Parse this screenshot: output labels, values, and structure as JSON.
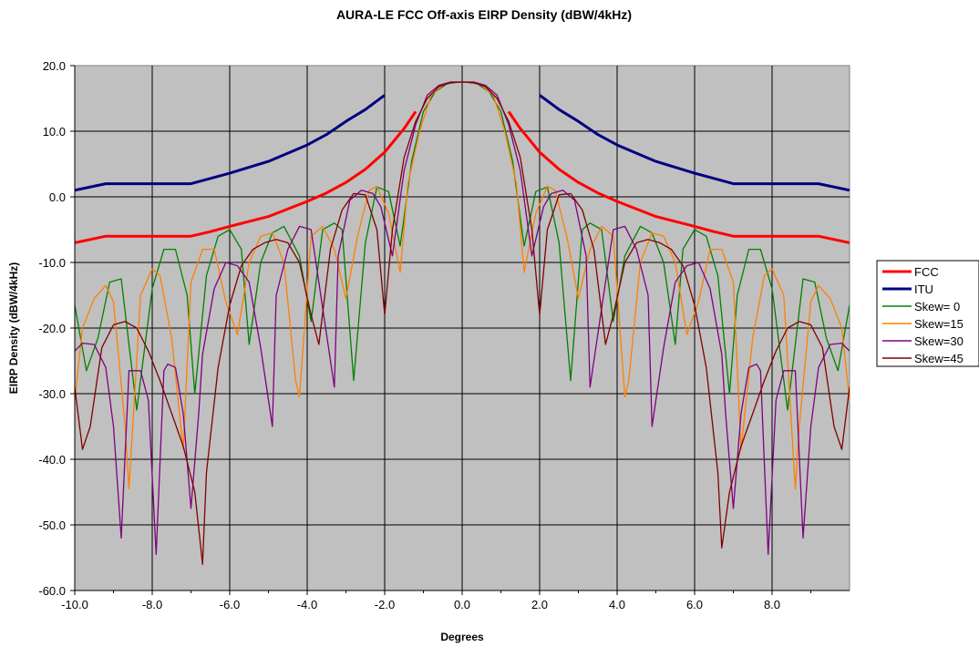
{
  "chart_data": {
    "type": "line",
    "title": "AURA-LE FCC Off-axis EIRP Density (dBW/4kHz)",
    "xlabel": "Degrees",
    "ylabel": "EIRP Density (dBW/4kHz)",
    "xlim": [
      -10,
      10
    ],
    "ylim": [
      -60,
      20
    ],
    "xticks": [
      "-10.0",
      "-8.0",
      "-6.0",
      "-4.0",
      "-2.0",
      "0.0",
      "2.0",
      "4.0",
      "6.0",
      "8.0"
    ],
    "yticks": [
      "20.0",
      "10.0",
      "0.0",
      "-10.0",
      "-20.0",
      "-30.0",
      "-40.0",
      "-50.0",
      "-60.0"
    ],
    "grid": true,
    "plot_background": "#c0c0c0",
    "legend_position": "right",
    "series": [
      {
        "name": "FCC",
        "color": "#ff0000",
        "segments": [
          [
            [
              -10,
              -7
            ],
            [
              -9.2,
              -6
            ],
            [
              -8,
              -6
            ],
            [
              -7,
              -6
            ],
            [
              -6.5,
              -5.3
            ],
            [
              -6,
              -4.5
            ],
            [
              -5,
              -3
            ],
            [
              -4,
              -0.7
            ],
            [
              -3.5,
              0.6
            ],
            [
              -3,
              2.2
            ],
            [
              -2.5,
              4.2
            ],
            [
              -2,
              6.8
            ],
            [
              -1.5,
              10.4
            ],
            [
              -1.2,
              13
            ]
          ],
          [
            [
              1.2,
              13
            ],
            [
              1.5,
              10.4
            ],
            [
              2,
              6.8
            ],
            [
              2.5,
              4.2
            ],
            [
              3,
              2.2
            ],
            [
              3.5,
              0.6
            ],
            [
              4,
              -0.7
            ],
            [
              5,
              -3
            ],
            [
              6,
              -4.5
            ],
            [
              6.5,
              -5.3
            ],
            [
              7,
              -6
            ],
            [
              8,
              -6
            ],
            [
              9.2,
              -6
            ],
            [
              10,
              -7
            ]
          ]
        ]
      },
      {
        "name": "ITU",
        "color": "#000080",
        "segments": [
          [
            [
              -10,
              1
            ],
            [
              -9.2,
              2
            ],
            [
              -8,
              2
            ],
            [
              -7,
              2
            ],
            [
              -6.5,
              2.8
            ],
            [
              -6,
              3.6
            ],
            [
              -5,
              5.4
            ],
            [
              -4,
              7.9
            ],
            [
              -3.5,
              9.5
            ],
            [
              -3,
              11.5
            ],
            [
              -2.5,
              13.3
            ],
            [
              -2,
              15.5
            ]
          ],
          [
            [
              2,
              15.5
            ],
            [
              2.5,
              13.3
            ],
            [
              3,
              11.5
            ],
            [
              3.5,
              9.5
            ],
            [
              4,
              7.9
            ],
            [
              5,
              5.4
            ],
            [
              6,
              3.6
            ],
            [
              6.5,
              2.8
            ],
            [
              7,
              2
            ],
            [
              8,
              2
            ],
            [
              9.2,
              2
            ],
            [
              10,
              1
            ]
          ]
        ]
      },
      {
        "name": "Skew= 0",
        "color": "#008000",
        "lobes_x": [
          0.72,
          2.25,
          3.78,
          5.32,
          6.87,
          8.42
        ],
        "lobes_y": [
          -20,
          -8,
          -22,
          -28,
          -30,
          -32
        ],
        "peaks_y": [
          1.5,
          -4,
          -4.5,
          -4.5,
          -7.5,
          -12
        ],
        "x": [
          -10,
          -9.7,
          -9.4,
          -9.1,
          -8.8,
          -8.4,
          -8,
          -7.7,
          -7.4,
          -7.1,
          -6.9,
          -6.6,
          -6.3,
          -6,
          -5.7,
          -5.5,
          -5.2,
          -4.9,
          -4.6,
          -4.2,
          -3.9,
          -3.6,
          -3.3,
          -3.1,
          -2.8,
          -2.5,
          -2.2,
          -1.9,
          -1.6,
          -1.3,
          -1,
          -0.7,
          -0.4,
          -0.1,
          0,
          0.1,
          0.4,
          0.7,
          1,
          1.3,
          1.6,
          1.9,
          2.2,
          2.5,
          2.8,
          3.1,
          3.3,
          3.6,
          3.9,
          4.2,
          4.6,
          4.9,
          5.2,
          5.5,
          5.7,
          6,
          6.3,
          6.6,
          6.9,
          7.1,
          7.4,
          7.7,
          8,
          8.4,
          8.8,
          9.1,
          9.4,
          9.7,
          10
        ],
        "y": [
          -16.5,
          -26.5,
          -21.5,
          -13,
          -12.5,
          -32.5,
          -14,
          -8,
          -8,
          -15,
          -30,
          -12,
          -6,
          -5,
          -8,
          -22.5,
          -10,
          -5.5,
          -4.5,
          -9,
          -19,
          -5,
          -4,
          -5,
          -28,
          -7,
          1.5,
          0.8,
          -7.5,
          5.5,
          13,
          16,
          17.2,
          17.5,
          17.5,
          17.5,
          17.2,
          16,
          13,
          5.5,
          -7.5,
          0.8,
          1.5,
          -7,
          -28,
          -5,
          -4,
          -5,
          -19,
          -9,
          -4.5,
          -5.5,
          -10,
          -22.5,
          -8,
          -5,
          -6,
          -12,
          -30,
          -15,
          -8,
          -8,
          -14,
          -32.5,
          -12.5,
          -13,
          -21.5,
          -26.5,
          -16.5
        ]
      },
      {
        "name": "Skew=15",
        "color": "#ff8000",
        "x": [
          -10,
          -9.8,
          -9.5,
          -9.2,
          -9,
          -8.7,
          -8.6,
          -8.3,
          -8,
          -7.8,
          -7.5,
          -7.2,
          -7,
          -6.7,
          -6.4,
          -6.1,
          -5.8,
          -5.5,
          -5.2,
          -4.9,
          -4.6,
          -4.3,
          -4.2,
          -3.9,
          -3.6,
          -3.3,
          -3,
          -2.7,
          -2.4,
          -2.2,
          -1.9,
          -1.6,
          -1.4,
          -1.1,
          -0.8,
          -0.5,
          -0.2,
          0,
          0.2,
          0.5,
          0.8,
          1.1,
          1.4,
          1.6,
          1.9,
          2.2,
          2.4,
          2.7,
          3,
          3.3,
          3.6,
          3.9,
          4.2,
          4.3,
          4.6,
          4.9,
          5.2,
          5.5,
          5.8,
          6.1,
          6.4,
          6.7,
          7,
          7.2,
          7.5,
          7.8,
          8,
          8.3,
          8.6,
          8.7,
          9,
          9.2,
          9.5,
          9.8,
          10
        ],
        "y": [
          -31,
          -20,
          -15.5,
          -13.5,
          -16,
          -35,
          -44.5,
          -15,
          -11,
          -12,
          -21.5,
          -38.5,
          -13,
          -8,
          -8,
          -16,
          -21,
          -10,
          -6,
          -5.5,
          -10,
          -28,
          -30.5,
          -6,
          -4.5,
          -8,
          -15.5,
          -6,
          1,
          1.6,
          -2.5,
          -11.5,
          2,
          10,
          15.5,
          17,
          17.5,
          17.5,
          17.5,
          17,
          15.5,
          10,
          2,
          -11.5,
          -2.5,
          1.6,
          1,
          -6,
          -15.5,
          -8,
          -4.5,
          -6,
          -30.5,
          -28,
          -10,
          -5.5,
          -6,
          -10,
          -21,
          -16,
          -8,
          -8,
          -13,
          -38.5,
          -21.5,
          -12,
          -11,
          -15,
          -44.5,
          -35,
          -16,
          -13.5,
          -15.5,
          -20,
          -31
        ]
      },
      {
        "name": "Skew=30",
        "color": "#800080",
        "x": [
          -10,
          -9.8,
          -9.5,
          -9.2,
          -9,
          -8.8,
          -8.6,
          -8.3,
          -8.1,
          -7.9,
          -7.7,
          -7.6,
          -7.4,
          -7.2,
          -7,
          -6.8,
          -6.7,
          -6.4,
          -6.1,
          -5.8,
          -5.5,
          -5.2,
          -4.9,
          -4.8,
          -4.5,
          -4.2,
          -3.9,
          -3.6,
          -3.3,
          -3.2,
          -2.9,
          -2.6,
          -2.3,
          -2.1,
          -1.8,
          -1.5,
          -1.2,
          -0.9,
          -0.6,
          -0.3,
          0,
          0.3,
          0.6,
          0.9,
          1.2,
          1.5,
          1.8,
          2.1,
          2.3,
          2.6,
          2.9,
          3.2,
          3.3,
          3.6,
          3.9,
          4.2,
          4.5,
          4.8,
          4.9,
          5.2,
          5.5,
          5.8,
          6.1,
          6.4,
          6.7,
          6.8,
          7,
          7.2,
          7.4,
          7.6,
          7.7,
          7.9,
          8.1,
          8.3,
          8.6,
          8.8,
          9,
          9.2,
          9.5,
          9.8,
          10
        ],
        "y": [
          -23.5,
          -22.3,
          -22.5,
          -26,
          -35,
          -52,
          -26.5,
          -26.5,
          -31,
          -54.5,
          -26.5,
          -25.5,
          -26,
          -33,
          -47.5,
          -33,
          -24,
          -14,
          -10,
          -10.5,
          -13,
          -23,
          -35,
          -15,
          -8,
          -4.5,
          -5,
          -17,
          -29,
          -9,
          -0.5,
          1,
          0.5,
          -1.5,
          -9,
          4,
          11,
          15.5,
          17,
          17.5,
          17.5,
          17.5,
          17,
          15.5,
          11,
          4,
          -9,
          -1.5,
          0.5,
          1,
          -0.5,
          -9,
          -29,
          -17,
          -5,
          -4.5,
          -8,
          -15,
          -35,
          -23,
          -13,
          -10.5,
          -10,
          -14,
          -24,
          -33,
          -47.5,
          -33,
          -26,
          -25.5,
          -26.5,
          -54.5,
          -31,
          -26.5,
          -26.5,
          -52,
          -35,
          -26,
          -22.5,
          -22.3,
          -23.5
        ]
      },
      {
        "name": "Skew=45",
        "color": "#800000",
        "x": [
          -10,
          -9.8,
          -9.6,
          -9.3,
          -9,
          -8.7,
          -8.4,
          -8.1,
          -7.8,
          -7.5,
          -7.2,
          -6.9,
          -6.7,
          -6.6,
          -6.3,
          -6,
          -5.7,
          -5.4,
          -5.1,
          -4.8,
          -4.5,
          -4.2,
          -3.9,
          -3.7,
          -3.4,
          -3.1,
          -2.8,
          -2.5,
          -2.2,
          -2,
          -1.8,
          -1.5,
          -1.2,
          -0.9,
          -0.6,
          -0.3,
          0,
          0.3,
          0.6,
          0.9,
          1.2,
          1.5,
          1.8,
          2,
          2.2,
          2.5,
          2.8,
          3.1,
          3.4,
          3.7,
          3.9,
          4.2,
          4.5,
          4.8,
          5.1,
          5.4,
          5.7,
          6,
          6.3,
          6.6,
          6.7,
          6.9,
          7.2,
          7.5,
          7.8,
          8.1,
          8.4,
          8.7,
          9,
          9.3,
          9.6,
          9.8,
          10
        ],
        "y": [
          -29,
          -38.5,
          -35,
          -23,
          -19.5,
          -19,
          -20,
          -23.5,
          -28,
          -33,
          -38,
          -45,
          -56,
          -42,
          -26,
          -16.5,
          -10.5,
          -8,
          -7,
          -6.5,
          -7,
          -10,
          -18,
          -22.5,
          -8,
          -2,
          0.5,
          0.3,
          -5,
          -18,
          -5,
          6,
          11.5,
          15,
          16.8,
          17.4,
          17.5,
          17.4,
          16.8,
          15,
          11.5,
          6,
          -5,
          -18,
          -5,
          0.3,
          0.5,
          -2,
          -8,
          -22.5,
          -18,
          -10,
          -7,
          -6.5,
          -7,
          -8,
          -10.5,
          -16.5,
          -26,
          -42,
          -53.5,
          -45,
          -38,
          -33,
          -28,
          -23.5,
          -20,
          -19,
          -19.5,
          -23,
          -35,
          -38.5,
          -29
        ]
      }
    ]
  }
}
